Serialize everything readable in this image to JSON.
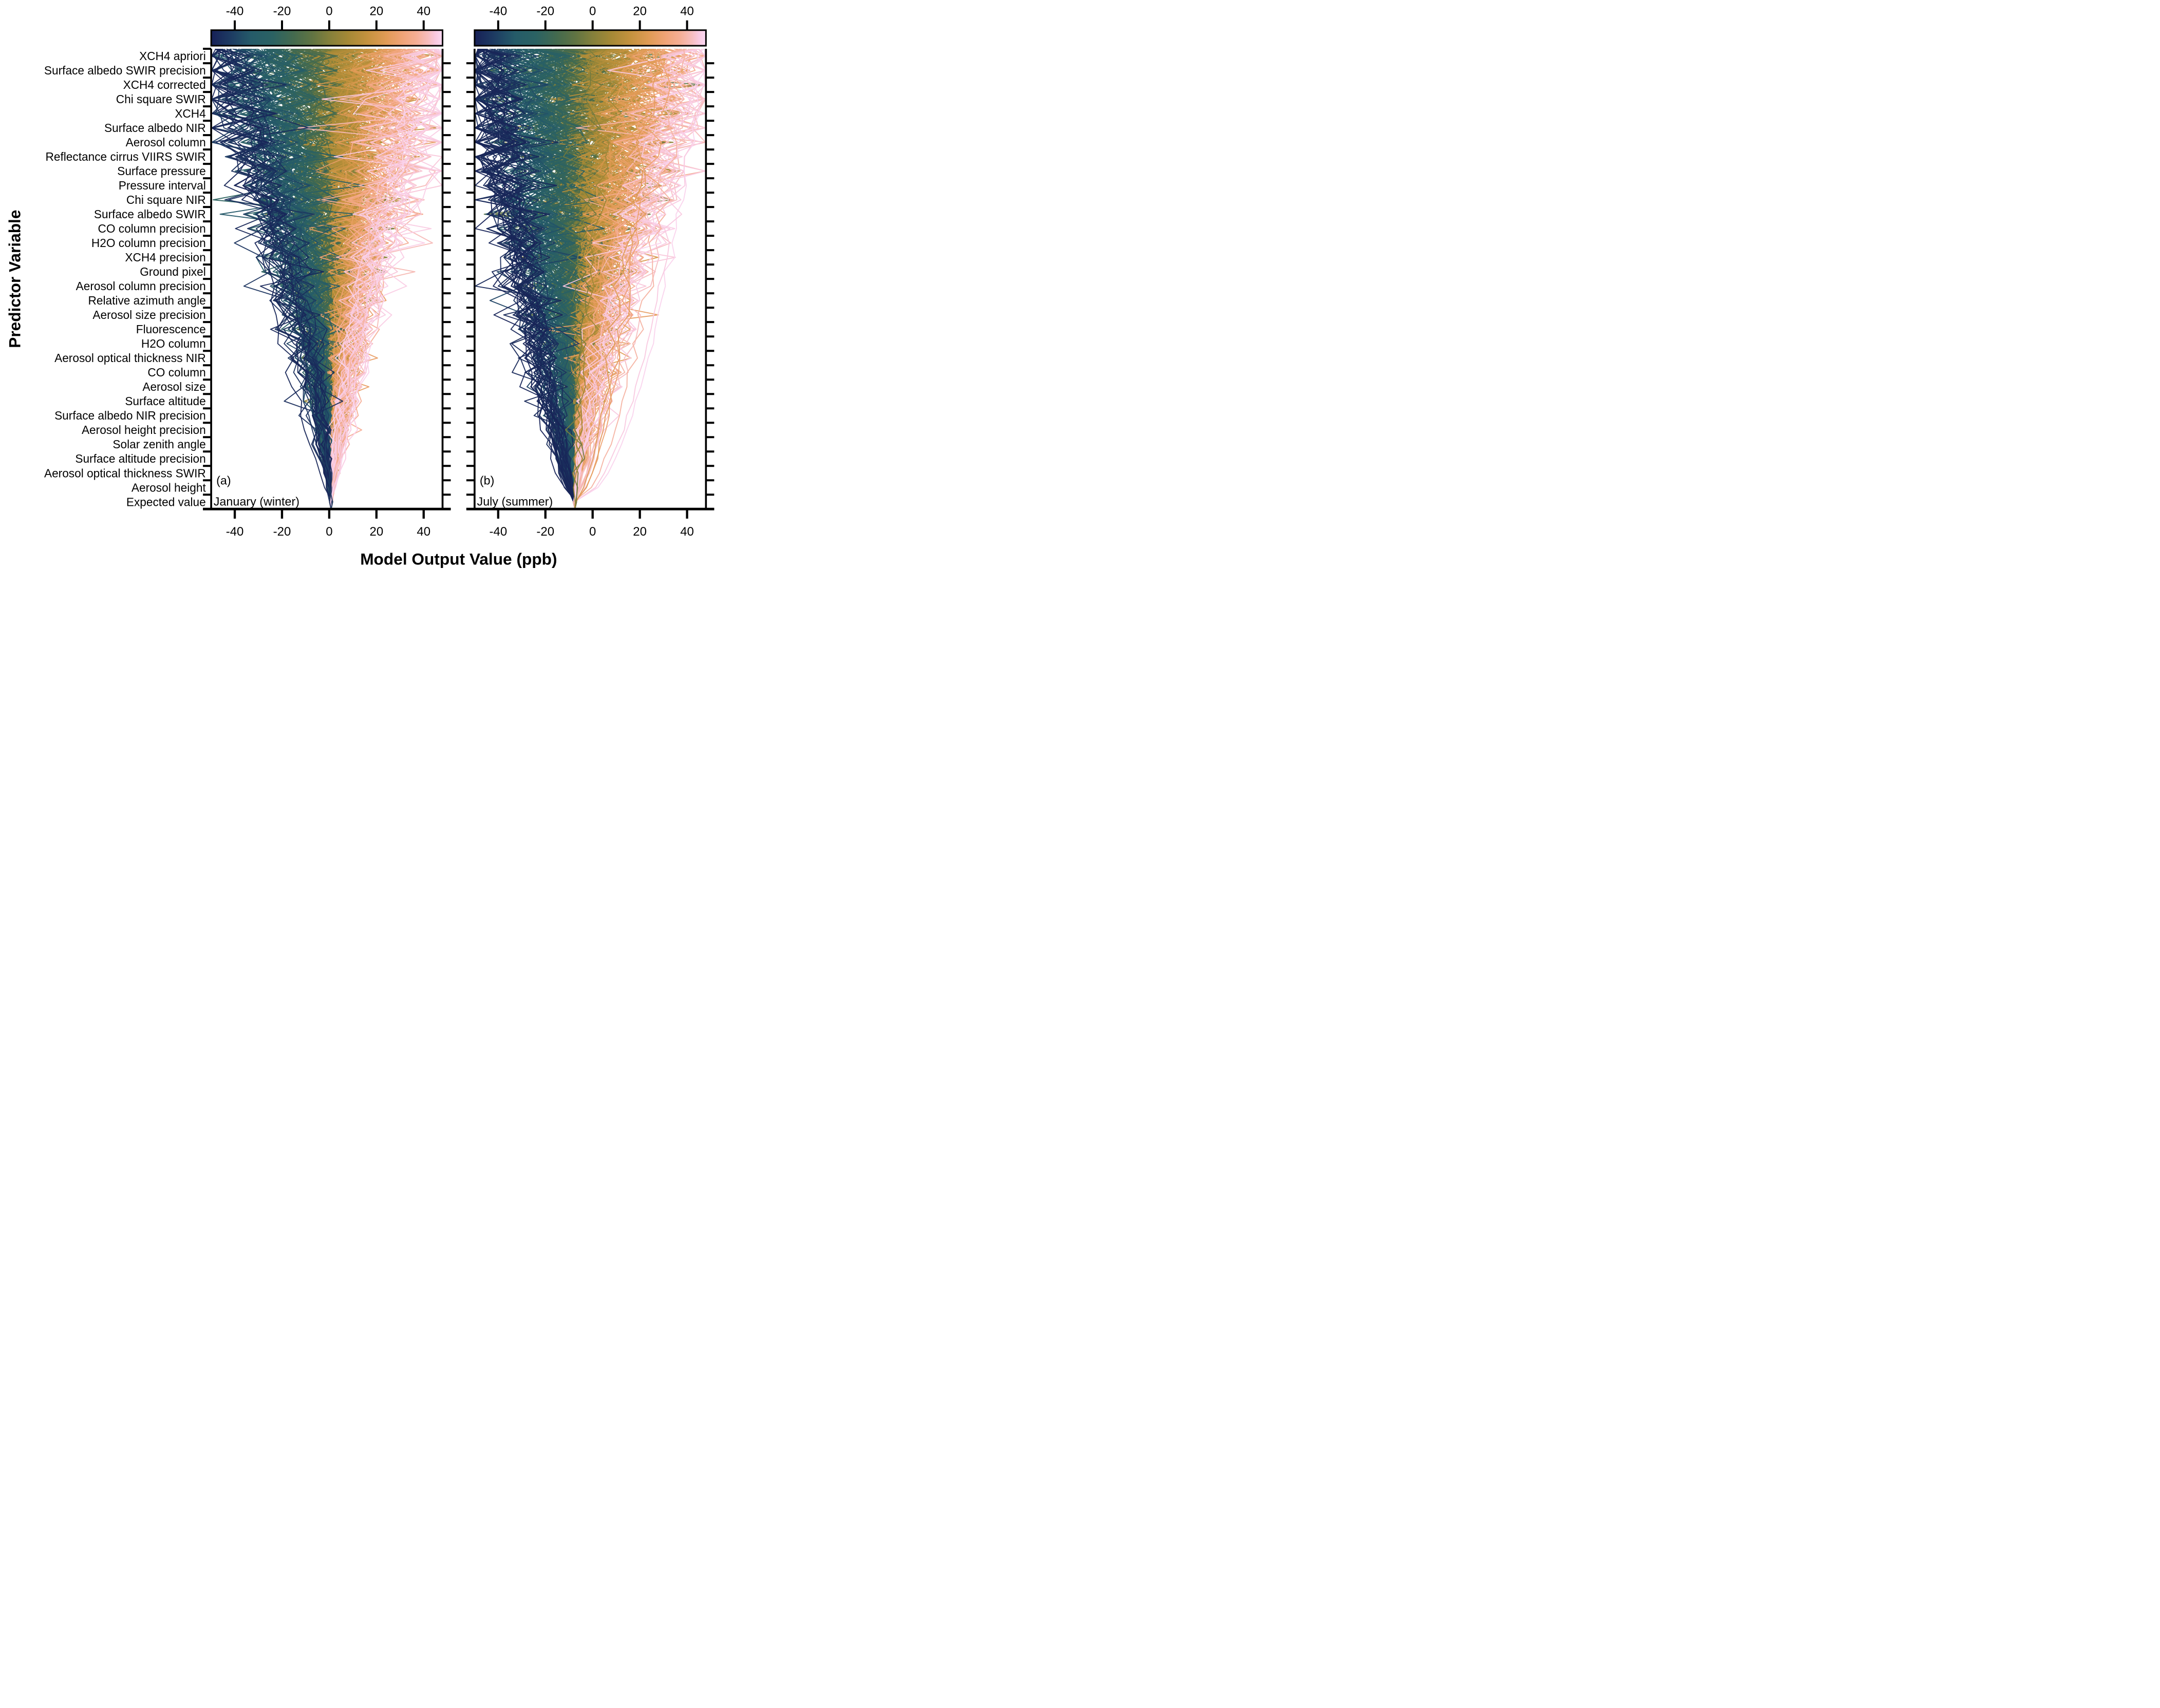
{
  "figure": {
    "background": "#ffffff",
    "axis_color": "#000000",
    "text_color": "#000000"
  },
  "chart_data": {
    "type": "line",
    "subtype": "shap-decision-plot",
    "title": "",
    "xlabel": "Model Output Value (ppb)",
    "ylabel": "Predictor Variable",
    "xlim": [
      -50,
      48
    ],
    "xticks": [
      -40,
      -20,
      0,
      20,
      40
    ],
    "grid": false,
    "legend": "none",
    "categories_top_to_bottom": [
      "XCH4 apriori",
      "Surface albedo SWIR precision",
      "XCH4 corrected",
      "Chi square SWIR",
      "XCH4",
      "Surface albedo NIR",
      "Aerosol column",
      "Reflectance cirrus VIIRS SWIR",
      "Surface pressure",
      "Pressure interval",
      "Chi square NIR",
      "Surface albedo SWIR",
      "CO column precision",
      "H2O column precision",
      "XCH4 precision",
      "Ground pixel",
      "Aerosol column precision",
      "Relative azimuth angle",
      "Aerosol size precision",
      "Fluorescence",
      "H2O column",
      "Aerosol optical thickness NIR",
      "CO column",
      "Aerosol size",
      "Surface altitude",
      "Surface albedo NIR precision",
      "Aerosol height precision",
      "Solar zenith angle",
      "Surface altitude precision",
      "Aerosol optical thickness SWIR",
      "Aerosol height",
      "Expected value"
    ],
    "colorbar": {
      "ticks": [
        -40,
        -20,
        0,
        20,
        40
      ],
      "domain": [
        -50,
        48
      ],
      "stops": [
        [
          -50,
          "#172057"
        ],
        [
          -42,
          "#1d3a62"
        ],
        [
          -33,
          "#255b69"
        ],
        [
          -24,
          "#2b6263"
        ],
        [
          -15,
          "#446a4e"
        ],
        [
          -7,
          "#617442"
        ],
        [
          0,
          "#84803b"
        ],
        [
          8,
          "#a58936"
        ],
        [
          16,
          "#c4923e"
        ],
        [
          24,
          "#e09b55"
        ],
        [
          31,
          "#f0a377"
        ],
        [
          37,
          "#f5ae95"
        ],
        [
          42,
          "#f7bdbf"
        ],
        [
          45,
          "#f9c9e0"
        ],
        [
          48,
          "#fbd9f3"
        ]
      ]
    },
    "panels": [
      {
        "id": "a",
        "letter": "(a)",
        "annotation": "January (winter)",
        "base_value": 0.8,
        "n_lines": 280,
        "final_value_center": 1,
        "final_value_spread": 64,
        "top_halfwidth": 46,
        "persistence_min": 0.85,
        "persistence_max": 1.8,
        "navy_persist": false,
        "special_lines": [
          {
            "final_value": 45,
            "persistence": 1.05,
            "noise_scale": 0.9,
            "boost_start_row": 1,
            "boost_len": 7,
            "zigzag_boost": 2.2
          },
          {
            "final_value": 42,
            "persistence": 1.15,
            "noise_scale": 1.0,
            "boost_start_row": 2,
            "boost_len": 7,
            "zigzag_boost": 2.4
          },
          {
            "final_value": 39,
            "persistence": 1.2,
            "noise_scale": 1.0,
            "boost_start_row": 1,
            "boost_len": 6,
            "zigzag_boost": 2.0
          },
          {
            "final_value": 47,
            "persistence": 1.0,
            "noise_scale": 0.8,
            "boost_start_row": 3,
            "boost_len": 5,
            "zigzag_boost": 1.6
          },
          {
            "final_value": -45,
            "persistence": 1.5,
            "noise_scale": 0.9,
            "boost_start_row": 0,
            "boost_len": 5,
            "zigzag_boost": 1.6
          },
          {
            "final_value": -41,
            "persistence": 1.25,
            "noise_scale": 1.0,
            "boost_start_row": 2,
            "boost_len": 6,
            "zigzag_boost": 1.8
          }
        ]
      },
      {
        "id": "b",
        "letter": "(b)",
        "annotation": "July (summer)",
        "base_value": -7.5,
        "n_lines": 280,
        "final_value_center": -4,
        "final_value_spread": 66,
        "top_halfwidth": 47,
        "persistence_min": 0.8,
        "persistence_max": 1.7,
        "navy_persist": true,
        "special_lines": [
          {
            "final_value": 47,
            "persistence": 0.5,
            "noise_scale": 0.25
          },
          {
            "final_value": 45,
            "persistence": 0.52,
            "noise_scale": 0.3
          },
          {
            "final_value": 38.5,
            "persistence": 0.55,
            "noise_scale": 0.35
          },
          {
            "final_value": 30,
            "persistence": 0.6,
            "noise_scale": 0.5
          },
          {
            "final_value": 26,
            "persistence": 0.55,
            "noise_scale": 0.4
          },
          {
            "final_value": 23,
            "persistence": 0.62,
            "noise_scale": 0.5
          },
          {
            "final_value": -2,
            "persistence": 1.0,
            "noise_scale": 0.6,
            "boost_start_row": 26,
            "boost_len": 6,
            "zigzag_boost": 4.0
          },
          {
            "final_value": -4,
            "persistence": 1.0,
            "noise_scale": 0.6,
            "boost_start_row": 27,
            "boost_len": 5,
            "zigzag_boost": 4.5
          },
          {
            "final_value": 6,
            "persistence": 0.9,
            "noise_scale": 0.6,
            "boost_start_row": 27,
            "boost_len": 5,
            "zigzag_boost": 3.5
          }
        ]
      }
    ]
  }
}
